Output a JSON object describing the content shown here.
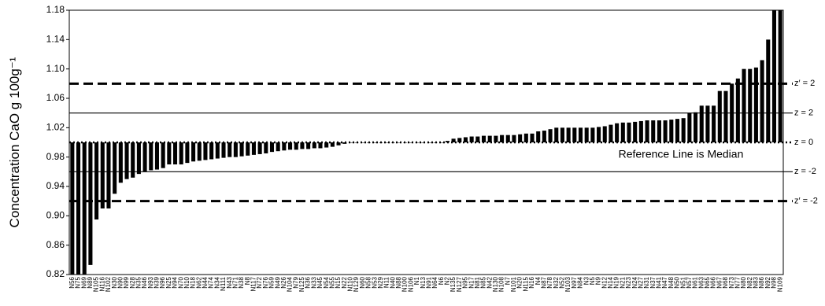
{
  "chart_data": {
    "type": "bar",
    "y_label": "Concentration CaO g 100g⁻¹",
    "annotation": "Reference Line is Median",
    "color": "#000000",
    "ylim": [
      0.82,
      1.18
    ],
    "yticks": [
      0.82,
      0.86,
      {
        "value": 0.9,
        "label": "0.90"
      },
      0.94,
      0.98,
      1.02,
      1.06,
      {
        "value": 1.1,
        "label": "1.10"
      },
      1.14,
      1.18
    ],
    "reference_lines": [
      {
        "value": 1.08,
        "label": "z′ = 2",
        "style": "dashed"
      },
      {
        "value": 1.04,
        "label": "z = 2",
        "style": "solid"
      },
      {
        "value": 1.0,
        "label": "z = 0",
        "style": "dotted"
      },
      {
        "value": 0.96,
        "label": "z = -2",
        "style": "solid"
      },
      {
        "value": 0.92,
        "label": "z′ = -2",
        "style": "dashed"
      }
    ],
    "categories": [
      "N56",
      "N75",
      "N69",
      "N89",
      "N105",
      "N116",
      "N102",
      "N30",
      "N90",
      "N99",
      "N28",
      "N35",
      "N46",
      "N93",
      "N39",
      "N96",
      "N25",
      "N94",
      "N70",
      "N10",
      "N18",
      "N62",
      "N44",
      "N74",
      "N34",
      "N111",
      "N43",
      "N71",
      "N38",
      "N8",
      "N117",
      "N72",
      "N76",
      "N59",
      "N49",
      "N26",
      "N104",
      "N79",
      "N125",
      "N36",
      "N33",
      "N45",
      "N54",
      "N55",
      "N15",
      "N22",
      "N110",
      "N129",
      "N60",
      "N58",
      "N53",
      "N29",
      "N11",
      "N40",
      "N88",
      "N100",
      "N106",
      "N1",
      "N13",
      "N91",
      "N64",
      "N6",
      "N2",
      "N135",
      "N127",
      "N95",
      "N17",
      "N81",
      "N85",
      "N42",
      "N130",
      "N108",
      "N7",
      "N101",
      "N20",
      "N115",
      "N16",
      "N4",
      "N87",
      "N78",
      "N32",
      "N52",
      "N103",
      "N97",
      "N84",
      "N3",
      "N5",
      "N9",
      "N12",
      "N14",
      "N19",
      "N21",
      "N23",
      "N24",
      "N27",
      "N31",
      "N37",
      "N41",
      "N47",
      "N48",
      "N50",
      "N51",
      "N57",
      "N61",
      "N63",
      "N65",
      "N66",
      "N67",
      "N68",
      "N73",
      "N77",
      "N80",
      "N82",
      "N83",
      "N86",
      "N92",
      "N98",
      "N109"
    ],
    "values": [
      0.82,
      0.82,
      0.82,
      0.833,
      0.895,
      0.91,
      0.91,
      0.93,
      0.945,
      0.95,
      0.952,
      0.957,
      0.96,
      0.962,
      0.963,
      0.965,
      0.97,
      0.97,
      0.97,
      0.972,
      0.974,
      0.975,
      0.976,
      0.977,
      0.978,
      0.979,
      0.98,
      0.98,
      0.981,
      0.982,
      0.983,
      0.984,
      0.985,
      0.987,
      0.988,
      0.989,
      0.99,
      0.99,
      0.991,
      0.991,
      0.992,
      0.992,
      0.993,
      0.994,
      0.996,
      0.998,
      1.0,
      1.0,
      1.0,
      1.0,
      1.0,
      1.0,
      1.0,
      1.0,
      1.0,
      1.0,
      1.0,
      1.0,
      1.0,
      1.0,
      1.0,
      1.0,
      1.002,
      1.005,
      1.006,
      1.007,
      1.008,
      1.008,
      1.009,
      1.009,
      1.009,
      1.01,
      1.01,
      1.01,
      1.011,
      1.012,
      1.012,
      1.015,
      1.016,
      1.018,
      1.02,
      1.02,
      1.02,
      1.02,
      1.02,
      1.02,
      1.02,
      1.021,
      1.022,
      1.024,
      1.026,
      1.027,
      1.027,
      1.028,
      1.029,
      1.03,
      1.03,
      1.03,
      1.03,
      1.031,
      1.032,
      1.033,
      1.04,
      1.041,
      1.05,
      1.05,
      1.05,
      1.07,
      1.07,
      1.08,
      1.087,
      1.1,
      1.1,
      1.102,
      1.112,
      1.14,
      1.18,
      1.18
    ]
  }
}
